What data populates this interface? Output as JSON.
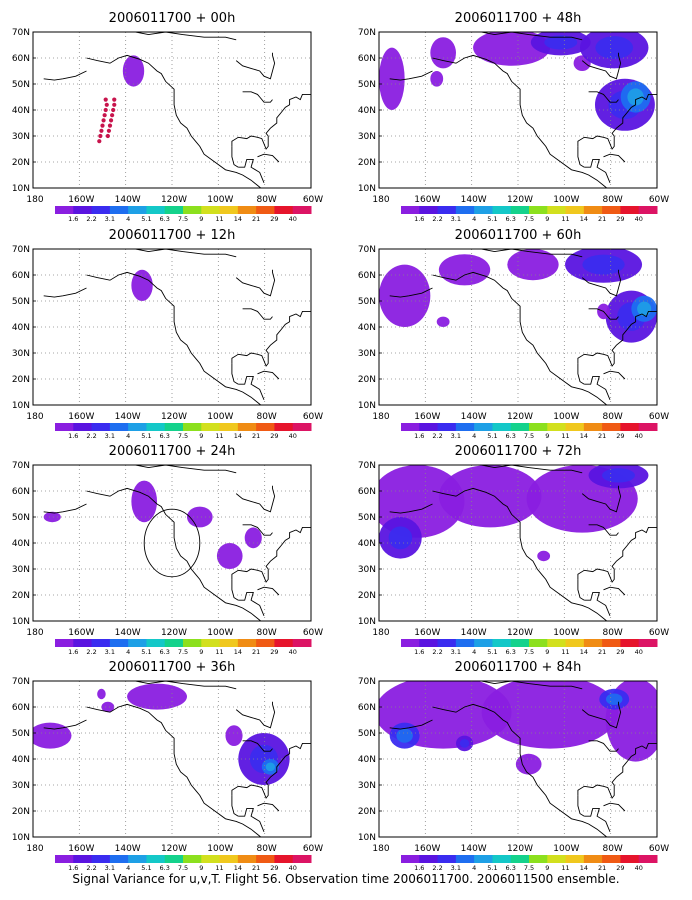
{
  "caption": "Signal Variance for u,v,T. Flight 56. Observation time 2006011700. 2006011500 ensemble.",
  "colors": {
    "land": "#000000",
    "grid": "#888888",
    "scale": [
      "#8a1ee0",
      "#5a14e0",
      "#3a2cf0",
      "#1e6ef0",
      "#1ea0e6",
      "#14c8c8",
      "#14d28c",
      "#8ce01e",
      "#d2e01e",
      "#f0c81e",
      "#f08c14",
      "#f05a14",
      "#e6142c",
      "#dc1464"
    ]
  },
  "chart_data": [
    {
      "type": "heatmap",
      "title": "2006011700 + 00h",
      "x_ticks": [
        "180",
        "160W",
        "140W",
        "120W",
        "100W",
        "80W",
        "60W"
      ],
      "y_ticks": [
        "10N",
        "20N",
        "30N",
        "40N",
        "50N",
        "60N",
        "70N"
      ],
      "xlim": [
        -190,
        -60
      ],
      "ylim": [
        10,
        70
      ],
      "colorbar_ticks": [
        "1.6",
        "2.2",
        "3.1",
        "4",
        "5.1",
        "6.3",
        "7.5",
        "9",
        "11",
        "14",
        "21",
        "29",
        "40"
      ],
      "blobs": [
        {
          "lon": -143,
          "lat": 55,
          "rlon": 5,
          "rlat": 6,
          "level": 1
        }
      ],
      "markers": {
        "color": "#c8144c",
        "points": [
          [
            -156,
            44
          ],
          [
            -155.5,
            42
          ],
          [
            -156,
            40
          ],
          [
            -156.5,
            38
          ],
          [
            -157,
            36
          ],
          [
            -157.5,
            34
          ],
          [
            -158,
            32
          ],
          [
            -158.5,
            30
          ],
          [
            -159,
            28
          ],
          [
            -152,
            44
          ],
          [
            -152,
            42
          ],
          [
            -152.5,
            40
          ],
          [
            -153,
            38
          ],
          [
            -153.5,
            36
          ],
          [
            -154,
            34
          ],
          [
            -154.5,
            32
          ],
          [
            -155,
            30
          ]
        ]
      }
    },
    {
      "type": "heatmap",
      "title": "2006011700 + 48h",
      "x_ticks": [
        "180",
        "160W",
        "140W",
        "120W",
        "100W",
        "80W",
        "60W"
      ],
      "y_ticks": [
        "10N",
        "20N",
        "30N",
        "40N",
        "50N",
        "60N",
        "70N"
      ],
      "xlim": [
        -190,
        -60
      ],
      "ylim": [
        10,
        70
      ],
      "colorbar_ticks": [
        "1.6",
        "2.2",
        "3.1",
        "4",
        "5.1",
        "6.3",
        "7.5",
        "9",
        "11",
        "14",
        "21",
        "29",
        "40"
      ],
      "blobs": [
        {
          "lon": -184,
          "lat": 52,
          "rlon": 6,
          "rlat": 12,
          "level": 1
        },
        {
          "lon": -160,
          "lat": 62,
          "rlon": 6,
          "rlat": 6,
          "level": 1
        },
        {
          "lon": -163,
          "lat": 52,
          "rlon": 3,
          "rlat": 3,
          "level": 1
        },
        {
          "lon": -128,
          "lat": 64,
          "rlon": 18,
          "rlat": 7,
          "level": 1
        },
        {
          "lon": -105,
          "lat": 66,
          "rlon": 14,
          "rlat": 5,
          "level": 2
        },
        {
          "lon": -95,
          "lat": 58,
          "rlon": 4,
          "rlat": 3,
          "level": 1
        },
        {
          "lon": -80,
          "lat": 64,
          "rlon": 16,
          "rlat": 8,
          "level": 2
        },
        {
          "lon": -75,
          "lat": 42,
          "rlon": 14,
          "rlat": 10,
          "level": 2
        },
        {
          "lon": -70,
          "lat": 45,
          "rlon": 7,
          "rlat": 6,
          "level": 4
        }
      ]
    },
    {
      "type": "heatmap",
      "title": "2006011700 + 12h",
      "x_ticks": [
        "180",
        "160W",
        "140W",
        "120W",
        "100W",
        "80W",
        "60W"
      ],
      "y_ticks": [
        "10N",
        "20N",
        "30N",
        "40N",
        "50N",
        "60N",
        "70N"
      ],
      "xlim": [
        -190,
        -60
      ],
      "ylim": [
        10,
        70
      ],
      "colorbar_ticks": [
        "1.6",
        "2.2",
        "3.1",
        "4",
        "5.1",
        "6.3",
        "7.5",
        "9",
        "11",
        "14",
        "21",
        "29",
        "40"
      ],
      "blobs": [
        {
          "lon": -139,
          "lat": 56,
          "rlon": 5,
          "rlat": 6,
          "level": 1
        }
      ]
    },
    {
      "type": "heatmap",
      "title": "2006011700 + 60h",
      "x_ticks": [
        "180",
        "160W",
        "140W",
        "120W",
        "100W",
        "80W",
        "60W"
      ],
      "y_ticks": [
        "10N",
        "20N",
        "30N",
        "40N",
        "50N",
        "60N",
        "70N"
      ],
      "xlim": [
        -190,
        -60
      ],
      "ylim": [
        10,
        70
      ],
      "colorbar_ticks": [
        "1.6",
        "2.2",
        "3.1",
        "4",
        "5.1",
        "6.3",
        "7.5",
        "9",
        "11",
        "14",
        "21",
        "29",
        "40"
      ],
      "blobs": [
        {
          "lon": -178,
          "lat": 52,
          "rlon": 12,
          "rlat": 12,
          "level": 1
        },
        {
          "lon": -150,
          "lat": 62,
          "rlon": 12,
          "rlat": 6,
          "level": 1
        },
        {
          "lon": -160,
          "lat": 42,
          "rlon": 3,
          "rlat": 2,
          "level": 1
        },
        {
          "lon": -118,
          "lat": 64,
          "rlon": 12,
          "rlat": 6,
          "level": 1
        },
        {
          "lon": -85,
          "lat": 64,
          "rlon": 18,
          "rlat": 7,
          "level": 2
        },
        {
          "lon": -72,
          "lat": 44,
          "rlon": 12,
          "rlat": 10,
          "level": 2
        },
        {
          "lon": -66,
          "lat": 47,
          "rlon": 6,
          "rlat": 5,
          "level": 4
        },
        {
          "lon": -85,
          "lat": 46,
          "rlon": 3,
          "rlat": 3,
          "level": 1
        }
      ]
    },
    {
      "type": "heatmap",
      "title": "2006011700 + 24h",
      "x_ticks": [
        "180",
        "160W",
        "140W",
        "120W",
        "100W",
        "80W",
        "60W"
      ],
      "y_ticks": [
        "10N",
        "20N",
        "30N",
        "40N",
        "50N",
        "60N",
        "70N"
      ],
      "xlim": [
        -190,
        -60
      ],
      "ylim": [
        10,
        70
      ],
      "colorbar_ticks": [
        "1.6",
        "2.2",
        "3.1",
        "4",
        "5.1",
        "6.3",
        "7.5",
        "9",
        "11",
        "14",
        "21",
        "29",
        "40"
      ],
      "blobs": [
        {
          "lon": -181,
          "lat": 50,
          "rlon": 4,
          "rlat": 2,
          "level": 1
        },
        {
          "lon": -138,
          "lat": 56,
          "rlon": 6,
          "rlat": 8,
          "level": 1
        },
        {
          "lon": -112,
          "lat": 50,
          "rlon": 6,
          "rlat": 4,
          "level": 1
        },
        {
          "lon": -98,
          "lat": 35,
          "rlon": 6,
          "rlat": 5,
          "level": 1
        },
        {
          "lon": -87,
          "lat": 42,
          "rlon": 4,
          "rlat": 4,
          "level": 1
        }
      ],
      "circle": {
        "lon": -125,
        "lat": 40,
        "rlon": 13,
        "rlat": 13
      }
    },
    {
      "type": "heatmap",
      "title": "2006011700 + 72h",
      "x_ticks": [
        "180",
        "160W",
        "140W",
        "120W",
        "100W",
        "80W",
        "60W"
      ],
      "y_ticks": [
        "10N",
        "20N",
        "30N",
        "40N",
        "50N",
        "60N",
        "70N"
      ],
      "xlim": [
        -190,
        -60
      ],
      "ylim": [
        10,
        70
      ],
      "colorbar_ticks": [
        "1.6",
        "2.2",
        "3.1",
        "4",
        "5.1",
        "6.3",
        "7.5",
        "9",
        "11",
        "14",
        "21",
        "29",
        "40"
      ],
      "blobs": [
        {
          "lon": -172,
          "lat": 56,
          "rlon": 22,
          "rlat": 14,
          "level": 1
        },
        {
          "lon": -138,
          "lat": 58,
          "rlon": 24,
          "rlat": 12,
          "level": 1
        },
        {
          "lon": -95,
          "lat": 57,
          "rlon": 26,
          "rlat": 13,
          "level": 1
        },
        {
          "lon": -180,
          "lat": 42,
          "rlon": 10,
          "rlat": 8,
          "level": 2
        },
        {
          "lon": -78,
          "lat": 66,
          "rlon": 14,
          "rlat": 5,
          "level": 2
        },
        {
          "lon": -113,
          "lat": 35,
          "rlon": 3,
          "rlat": 2,
          "level": 1
        }
      ]
    },
    {
      "type": "heatmap",
      "title": "2006011700 + 36h",
      "x_ticks": [
        "180",
        "160W",
        "140W",
        "120W",
        "100W",
        "80W",
        "60W"
      ],
      "y_ticks": [
        "10N",
        "20N",
        "30N",
        "40N",
        "50N",
        "60N",
        "70N"
      ],
      "xlim": [
        -190,
        -60
      ],
      "ylim": [
        10,
        70
      ],
      "colorbar_ticks": [
        "1.6",
        "2.2",
        "3.1",
        "4",
        "5.1",
        "6.3",
        "7.5",
        "9",
        "11",
        "14",
        "21",
        "29",
        "40"
      ],
      "blobs": [
        {
          "lon": -182,
          "lat": 49,
          "rlon": 10,
          "rlat": 5,
          "level": 1
        },
        {
          "lon": -158,
          "lat": 65,
          "rlon": 2,
          "rlat": 2,
          "level": 1
        },
        {
          "lon": -155,
          "lat": 60,
          "rlon": 3,
          "rlat": 2,
          "level": 1
        },
        {
          "lon": -132,
          "lat": 64,
          "rlon": 14,
          "rlat": 5,
          "level": 1
        },
        {
          "lon": -96,
          "lat": 49,
          "rlon": 4,
          "rlat": 4,
          "level": 1
        },
        {
          "lon": -82,
          "lat": 40,
          "rlon": 12,
          "rlat": 10,
          "level": 2
        },
        {
          "lon": -79,
          "lat": 37,
          "rlon": 4,
          "rlat": 3,
          "level": 4
        }
      ]
    },
    {
      "type": "heatmap",
      "title": "2006011700 + 84h",
      "x_ticks": [
        "180",
        "160W",
        "140W",
        "120W",
        "100W",
        "80W",
        "60W"
      ],
      "y_ticks": [
        "10N",
        "20N",
        "30N",
        "40N",
        "50N",
        "60N",
        "70N"
      ],
      "xlim": [
        -190,
        -60
      ],
      "ylim": [
        10,
        70
      ],
      "colorbar_ticks": [
        "1.6",
        "2.2",
        "3.1",
        "4",
        "5.1",
        "6.3",
        "7.5",
        "9",
        "11",
        "14",
        "21",
        "29",
        "40"
      ],
      "blobs": [
        {
          "lon": -160,
          "lat": 58,
          "rlon": 32,
          "rlat": 14,
          "level": 1
        },
        {
          "lon": -110,
          "lat": 58,
          "rlon": 32,
          "rlat": 14,
          "level": 1
        },
        {
          "lon": -70,
          "lat": 55,
          "rlon": 14,
          "rlat": 16,
          "level": 1
        },
        {
          "lon": -178,
          "lat": 49,
          "rlon": 7,
          "rlat": 5,
          "level": 3
        },
        {
          "lon": -150,
          "lat": 46,
          "rlon": 4,
          "rlat": 3,
          "level": 2
        },
        {
          "lon": -80,
          "lat": 63,
          "rlon": 7,
          "rlat": 4,
          "level": 3
        },
        {
          "lon": -120,
          "lat": 38,
          "rlon": 6,
          "rlat": 4,
          "level": 1
        }
      ]
    }
  ]
}
